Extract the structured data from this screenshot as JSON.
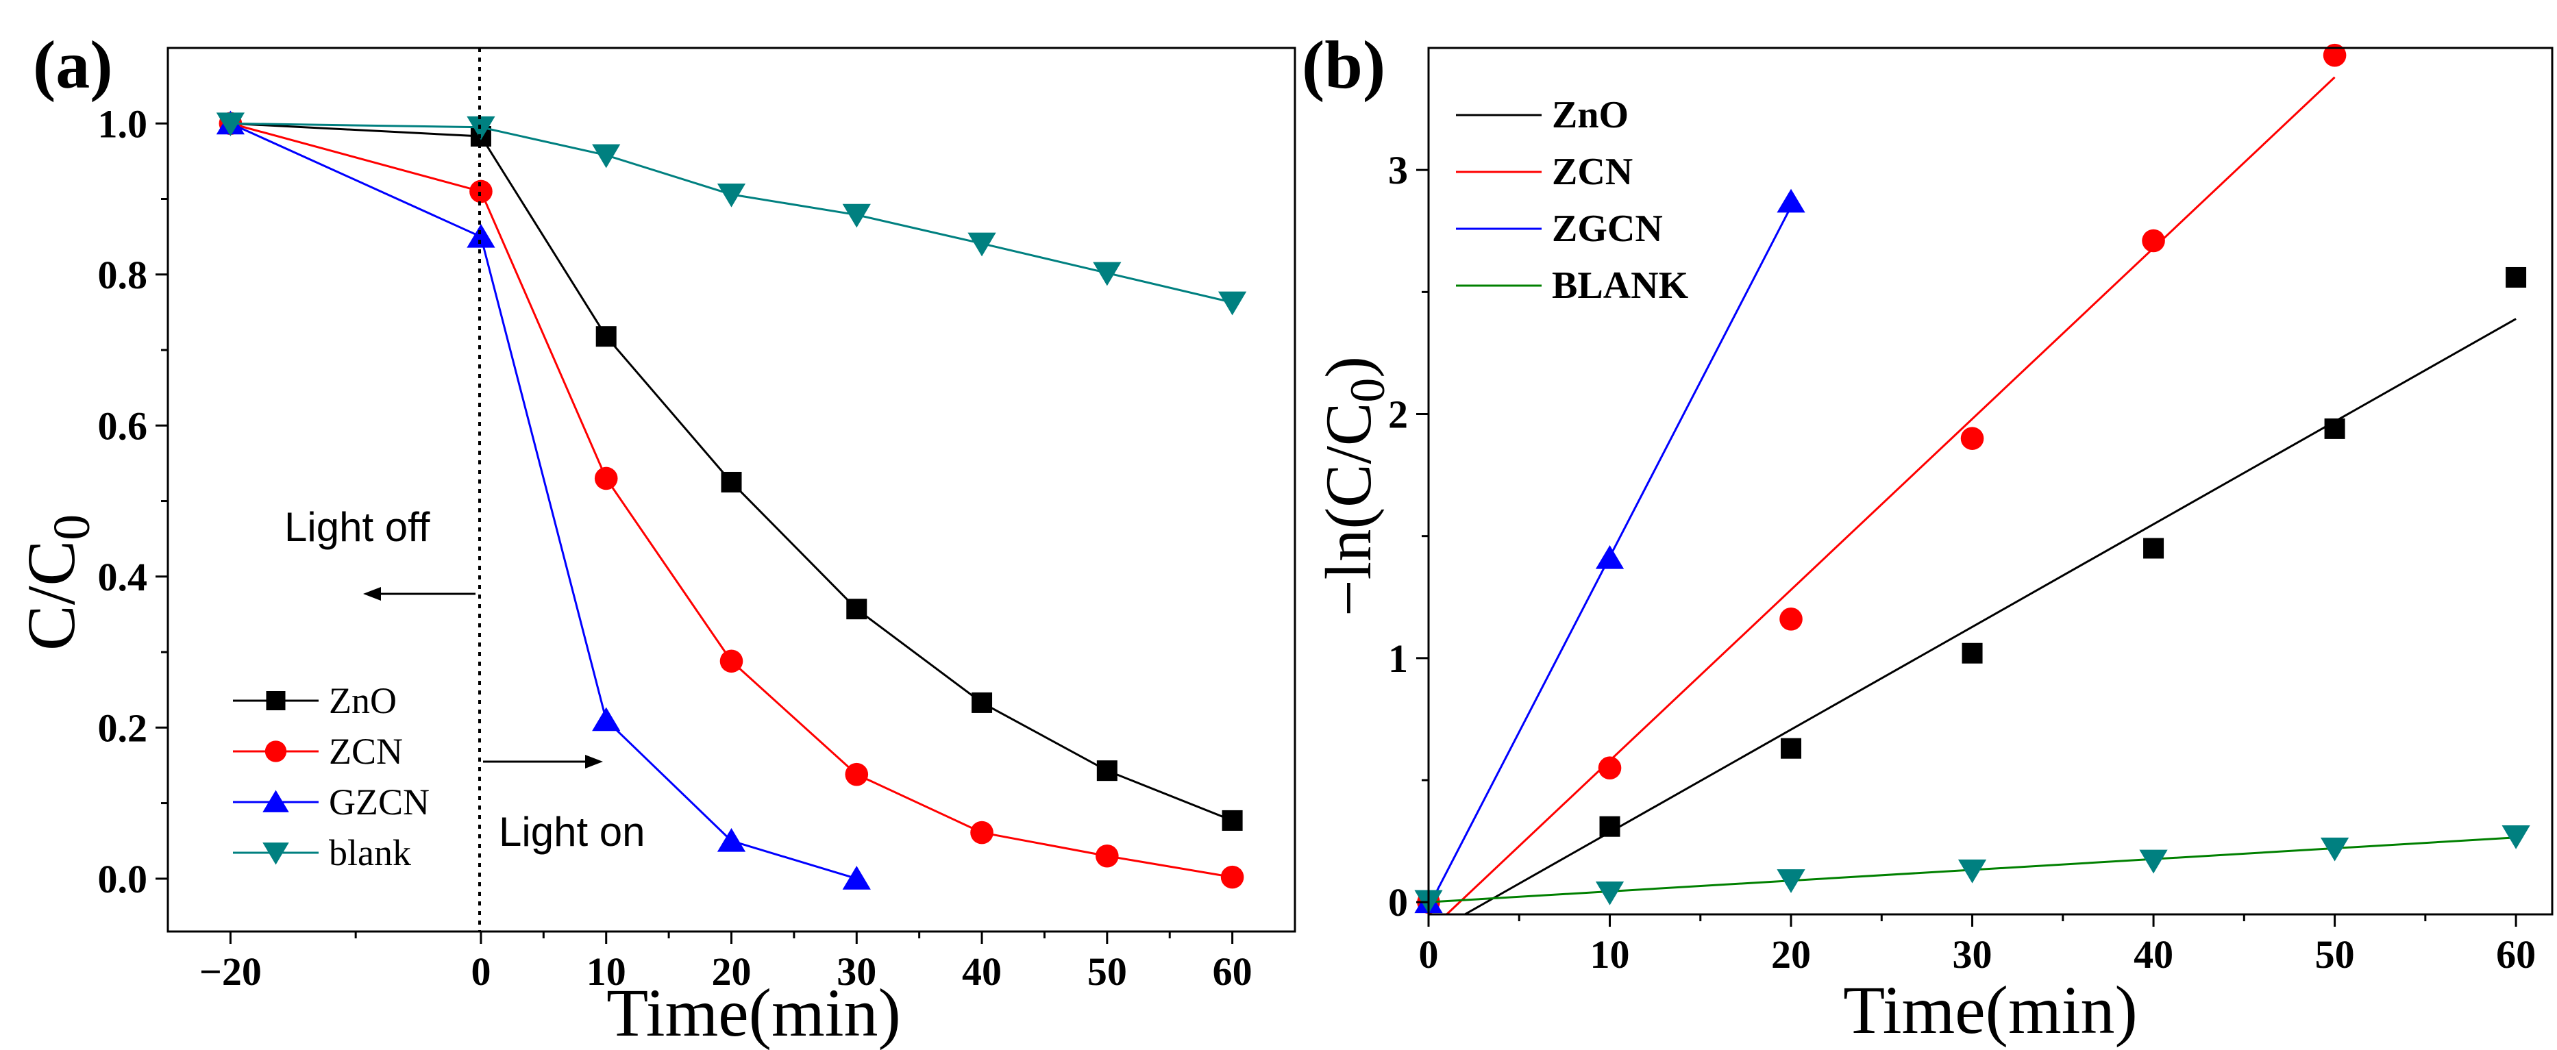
{
  "chart_data": [
    {
      "panel_label": "(a)",
      "type": "line",
      "xlabel": "Time(min)",
      "ylabel_main": "C/C",
      "ylabel_sub": "0",
      "xlim": [
        -25,
        65
      ],
      "ylim": [
        -0.07,
        1.1
      ],
      "xticks": [
        -20,
        0,
        10,
        20,
        30,
        40,
        50,
        60
      ],
      "xtick_labels": [
        "−20",
        "0",
        "10",
        "20",
        "30",
        "40",
        "50",
        "60"
      ],
      "yticks": [
        0.0,
        0.2,
        0.4,
        0.6,
        0.8,
        1.0
      ],
      "ytick_labels": [
        "0.0",
        "0.2",
        "0.4",
        "0.6",
        "0.8",
        "1.0"
      ],
      "legend_position": "bottom-left",
      "annotations": {
        "light_off": "Light off",
        "light_on": "Light on"
      },
      "series": [
        {
          "name": "ZnO",
          "marker": "square",
          "color": "#000000",
          "marker_color": "#000000",
          "x": [
            -20,
            0,
            10,
            20,
            30,
            40,
            50,
            60
          ],
          "y": [
            1.0,
            0.983,
            0.718,
            0.525,
            0.357,
            0.233,
            0.143,
            0.077
          ]
        },
        {
          "name": "ZCN",
          "marker": "circle",
          "color": "#ff0000",
          "marker_color": "#ff0000",
          "x": [
            -20,
            0,
            10,
            20,
            30,
            40,
            50,
            60
          ],
          "y": [
            1.0,
            0.91,
            0.53,
            0.288,
            0.138,
            0.061,
            0.03,
            0.002
          ]
        },
        {
          "name": "GZCN",
          "marker": "triangle-up",
          "color": "#0000ff",
          "marker_color": "#0000ff",
          "x": [
            -20,
            0,
            10,
            20,
            30
          ],
          "y": [
            1.0,
            0.85,
            0.21,
            0.05,
            0.0
          ]
        },
        {
          "name": "blank",
          "marker": "triangle-down",
          "color": "#008080",
          "marker_color": "#008080",
          "x": [
            -20,
            0,
            10,
            20,
            30,
            40,
            50,
            60
          ],
          "y": [
            1.0,
            0.995,
            0.958,
            0.906,
            0.879,
            0.841,
            0.802,
            0.763
          ]
        }
      ]
    },
    {
      "panel_label": "(b)",
      "type": "scatter",
      "xlabel": "Time(min)",
      "ylabel_main": "−ln(C/C",
      "ylabel_sub": "0",
      "ylabel_end": ")",
      "xlim": [
        0,
        62
      ],
      "ylim": [
        -0.05,
        3.5
      ],
      "xticks": [
        0,
        10,
        20,
        30,
        40,
        50,
        60
      ],
      "xtick_labels": [
        "0",
        "10",
        "20",
        "30",
        "40",
        "50",
        "60"
      ],
      "yticks": [
        0,
        1,
        2,
        3
      ],
      "ytick_labels": [
        "0",
        "1",
        "2",
        "3"
      ],
      "legend_position": "top-left",
      "series": [
        {
          "name": "ZnO",
          "marker": "square",
          "color": "#000000",
          "marker_color": "#000000",
          "x": [
            0,
            10,
            20,
            30,
            40,
            50,
            60
          ],
          "y": [
            0.0,
            0.31,
            0.63,
            1.02,
            1.45,
            1.94,
            2.56
          ],
          "fit": {
            "x": [
              2.0,
              60
            ],
            "y": [
              -0.05,
              2.39
            ]
          }
        },
        {
          "name": "ZCN",
          "marker": "circle",
          "color": "#ff0000",
          "marker_color": "#ff0000",
          "x": [
            0,
            10,
            20,
            30,
            40,
            50
          ],
          "y": [
            0.0,
            0.55,
            1.16,
            1.9,
            2.71,
            3.47
          ],
          "fit": {
            "x": [
              1.0,
              50
            ],
            "y": [
              -0.05,
              3.38
            ]
          }
        },
        {
          "name": "ZGCN",
          "marker": "triangle-up",
          "color": "#0000ff",
          "marker_color": "#0000ff",
          "x": [
            0,
            10,
            20
          ],
          "y": [
            0.0,
            1.41,
            2.87
          ],
          "fit": {
            "x": [
              0,
              20
            ],
            "y": [
              -0.02,
              2.85
            ]
          }
        },
        {
          "name": "BLANK",
          "marker": "triangle-down",
          "color": "#008080",
          "line_color": "#008000",
          "marker_color": "#008080",
          "x": [
            0,
            10,
            20,
            30,
            40,
            50,
            60
          ],
          "y": [
            0.005,
            0.04,
            0.09,
            0.13,
            0.17,
            0.22,
            0.27
          ],
          "fit": {
            "x": [
              0,
              60
            ],
            "y": [
              0.0,
              0.265
            ]
          }
        }
      ]
    }
  ]
}
